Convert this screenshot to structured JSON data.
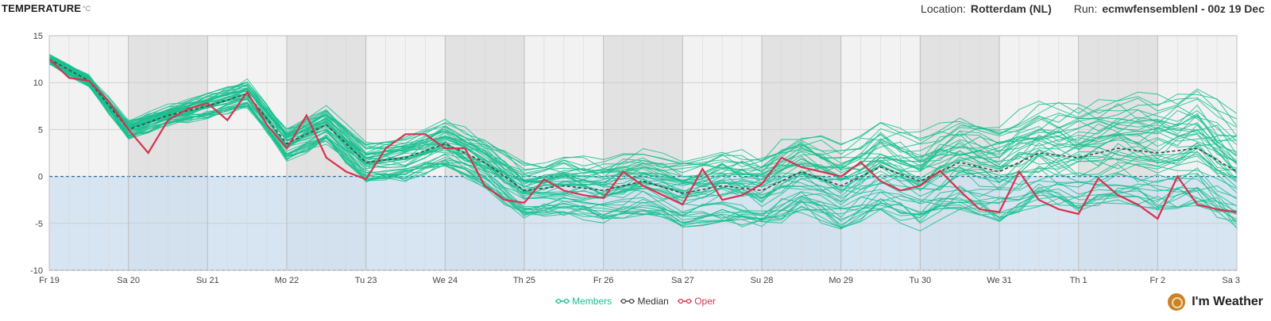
{
  "header": {
    "title": "TEMPERATURE",
    "unit": "°C",
    "location_label": "Location:",
    "location_value": "Rotterdam (NL)",
    "run_label": "Run:",
    "run_value": "ecmwfensemblenl - 00z 19 Dec"
  },
  "legend": {
    "members": "Members",
    "median": "Median",
    "oper": "Oper"
  },
  "brand": {
    "name": "I'm Weather"
  },
  "colors": {
    "members": "#19c08f",
    "median": "#444444",
    "oper": "#d6334e",
    "below_zero": "#cfe0f0",
    "day_light": "#f2f2f2",
    "day_dark": "#e2e2e2"
  },
  "chart_data": {
    "type": "line",
    "x_unit": "days from Fr 19 00z",
    "xlim": [
      0,
      15
    ],
    "ylim": [
      -10,
      15
    ],
    "yticks": [
      -10,
      -5,
      0,
      5,
      10,
      15
    ],
    "day_labels": [
      "Fr 19",
      "Sa 20",
      "Su 21",
      "Mo 22",
      "Tu 23",
      "We 24",
      "Th 25",
      "Fr 26",
      "Sa 27",
      "Su 28",
      "Mo 29",
      "Tu 30",
      "We 31",
      "Th 1",
      "Fr 2",
      "Sa 3"
    ],
    "grid": true,
    "shaded_below": 0,
    "member_count": 50,
    "series": [
      {
        "name": "Oper",
        "x": [
          0,
          0.25,
          0.5,
          0.75,
          1,
          1.25,
          1.5,
          1.75,
          2,
          2.25,
          2.5,
          2.75,
          3,
          3.25,
          3.5,
          3.75,
          4,
          4.25,
          4.5,
          4.75,
          5,
          5.25,
          5.5,
          5.75,
          6,
          6.25,
          6.5,
          6.75,
          7,
          7.25,
          7.5,
          7.75,
          8,
          8.25,
          8.5,
          8.75,
          9,
          9.25,
          9.5,
          9.75,
          10,
          10.25,
          10.5,
          10.75,
          11,
          11.25,
          11.5,
          11.75,
          12,
          12.25,
          12.5,
          12.75,
          13,
          13.25,
          13.5,
          13.75,
          14,
          14.25,
          14.5,
          14.75,
          15
        ],
        "values": [
          12.5,
          10.5,
          10.2,
          8.0,
          5.0,
          2.5,
          6.0,
          7.2,
          7.8,
          6.0,
          9.0,
          5.5,
          3.0,
          6.5,
          2.0,
          0.5,
          -0.3,
          3.0,
          4.5,
          4.5,
          3.0,
          3.0,
          -1.0,
          -2.5,
          -2.8,
          -0.3,
          -1.5,
          -2.0,
          -2.3,
          0.5,
          -1.0,
          -2.0,
          -3.0,
          0.8,
          -2.5,
          -2.0,
          -0.8,
          2.0,
          1.0,
          0.5,
          0.0,
          1.5,
          -0.5,
          -1.5,
          -1.0,
          0.6,
          -1.5,
          -3.5,
          -3.8,
          0.5,
          -2.5,
          -3.5,
          -4.0,
          -0.2,
          -2.0,
          -3.0,
          -4.5,
          0.0,
          -3.0,
          -3.5,
          -3.8
        ]
      },
      {
        "name": "Median",
        "x": [
          0,
          0.5,
          1,
          1.5,
          2,
          2.5,
          3,
          3.5,
          4,
          4.5,
          5,
          5.5,
          6,
          6.5,
          7,
          7.5,
          8,
          8.5,
          9,
          9.5,
          10,
          10.5,
          11,
          11.5,
          12,
          12.5,
          13,
          13.5,
          14,
          14.5,
          15
        ],
        "values": [
          12.5,
          10.2,
          5.0,
          6.5,
          7.5,
          8.8,
          3.5,
          5.5,
          1.5,
          2.0,
          3.5,
          1.5,
          -1.5,
          -1.0,
          -1.5,
          -0.5,
          -1.8,
          -1.0,
          -1.5,
          0.5,
          -1.0,
          1.0,
          -0.5,
          1.5,
          0.5,
          2.5,
          2.0,
          3.0,
          2.5,
          3.0,
          0.5
        ]
      }
    ]
  }
}
